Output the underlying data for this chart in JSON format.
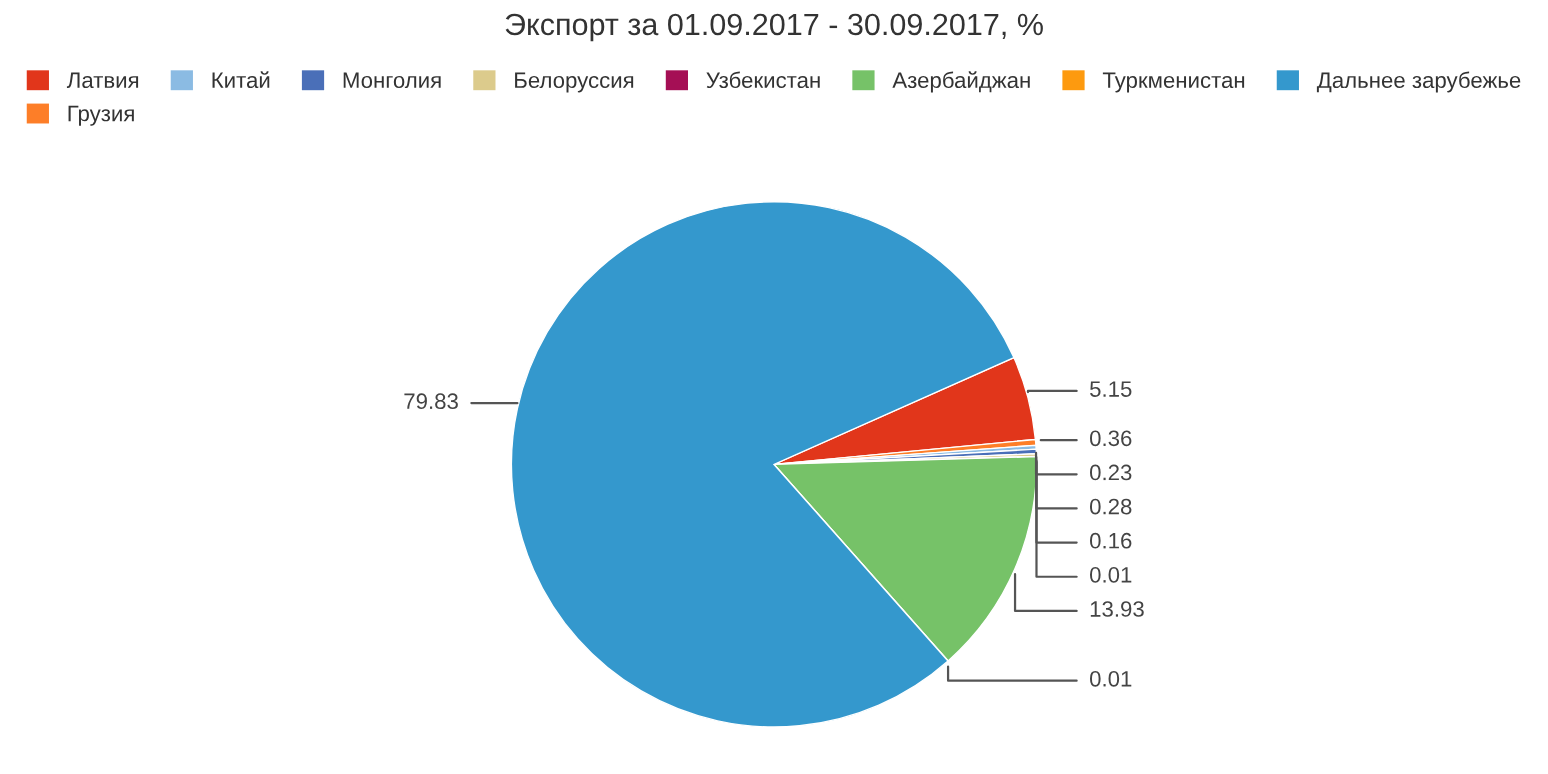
{
  "chart_data": {
    "type": "pie",
    "title": "Экспорт за 01.09.2017 - 30.09.2017, %",
    "categories": [
      "Латвия",
      "Грузия",
      "Китай",
      "Монголия",
      "Белоруссия",
      "Узбекистан",
      "Азербайджан",
      "Туркменистан",
      "Дальнее зарубежье"
    ],
    "values": [
      5.15,
      0.36,
      0.23,
      0.28,
      0.16,
      0.01,
      13.93,
      0.01,
      79.83
    ],
    "colors": [
      "#e1361b",
      "#fd7e28",
      "#8bbbe3",
      "#4a6fb8",
      "#dccb8c",
      "#a50f55",
      "#76c268",
      "#fd9a0f",
      "#3498cd"
    ],
    "data_labels": true,
    "legend": "top"
  }
}
